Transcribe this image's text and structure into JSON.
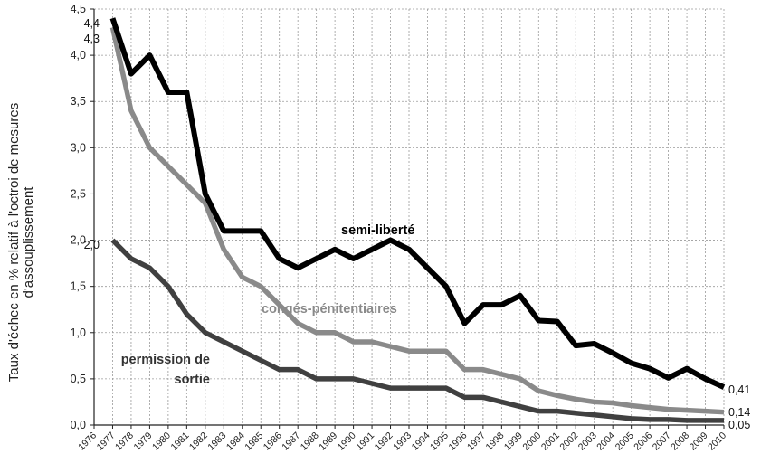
{
  "chart_data": {
    "type": "line",
    "ylabel_lines": [
      "Taux d'échec en % relatif à l'octroi de mesures",
      "d'assouplissement"
    ],
    "ylim": [
      0,
      4.5
    ],
    "y_ticks": [
      "0,0",
      "0,5",
      "1,0",
      "1,5",
      "2,0",
      "2,5",
      "3,0",
      "3,5",
      "4,0",
      "4,5"
    ],
    "xlim": [
      1976,
      2010
    ],
    "x": [
      1977,
      1978,
      1979,
      1980,
      1981,
      1982,
      1983,
      1984,
      1985,
      1986,
      1987,
      1988,
      1989,
      1990,
      1991,
      1992,
      1993,
      1994,
      1995,
      1996,
      1997,
      1998,
      1999,
      2000,
      2001,
      2002,
      2003,
      2004,
      2005,
      2006,
      2007,
      2008,
      2009,
      2010
    ],
    "x_ticks": [
      "1976",
      "1977",
      "1978",
      "1979",
      "1980",
      "1981",
      "1982",
      "1983",
      "1984",
      "1985",
      "1986",
      "1987",
      "1988",
      "1989",
      "1990",
      "1991",
      "1992",
      "1993",
      "1994",
      "1995",
      "1996",
      "1997",
      "1998",
      "1999",
      "2000",
      "2001",
      "2002",
      "2003",
      "2004",
      "2005",
      "2006",
      "2007",
      "2008",
      "2009",
      "2010"
    ],
    "grid": true,
    "series": [
      {
        "name": "semi-liberté",
        "label_lines": [
          "semi-liberté"
        ],
        "color": "#000000",
        "label_color": "#000000",
        "values": [
          4.4,
          3.8,
          4.0,
          3.6,
          3.6,
          2.5,
          2.1,
          2.1,
          2.1,
          1.8,
          1.7,
          1.8,
          1.9,
          1.8,
          1.9,
          2.0,
          1.9,
          1.7,
          1.5,
          1.1,
          1.3,
          1.3,
          1.4,
          1.13,
          1.12,
          0.86,
          0.88,
          0.78,
          0.67,
          0.61,
          0.51,
          0.61,
          0.5,
          0.41
        ],
        "start_label": "4,4",
        "end_label": "0,41"
      },
      {
        "name": "congés-pénitentiaires",
        "label_lines": [
          "congés-pénitentiaires"
        ],
        "color": "#8a8a8a",
        "label_color": "#8a8a8a",
        "values": [
          4.3,
          3.4,
          3.0,
          2.8,
          2.6,
          2.4,
          1.9,
          1.6,
          1.5,
          1.3,
          1.1,
          1.0,
          1.0,
          0.9,
          0.9,
          0.85,
          0.8,
          0.8,
          0.8,
          0.6,
          0.6,
          0.55,
          0.5,
          0.37,
          0.32,
          0.28,
          0.25,
          0.24,
          0.21,
          0.19,
          0.17,
          0.16,
          0.15,
          0.14
        ],
        "start_label": "4,3",
        "end_label": "0,14"
      },
      {
        "name": "permission de sortie",
        "label_lines": [
          "permission de",
          "sortie"
        ],
        "color": "#404040",
        "label_color": "#333333",
        "values": [
          2.0,
          1.8,
          1.7,
          1.5,
          1.2,
          1.0,
          0.9,
          0.8,
          0.7,
          0.6,
          0.6,
          0.5,
          0.5,
          0.5,
          0.45,
          0.4,
          0.4,
          0.4,
          0.4,
          0.3,
          0.3,
          0.25,
          0.2,
          0.15,
          0.15,
          0.13,
          0.11,
          0.09,
          0.07,
          0.06,
          0.06,
          0.05,
          0.05,
          0.05
        ],
        "start_label": "2,0",
        "end_label": "0,05"
      }
    ]
  }
}
